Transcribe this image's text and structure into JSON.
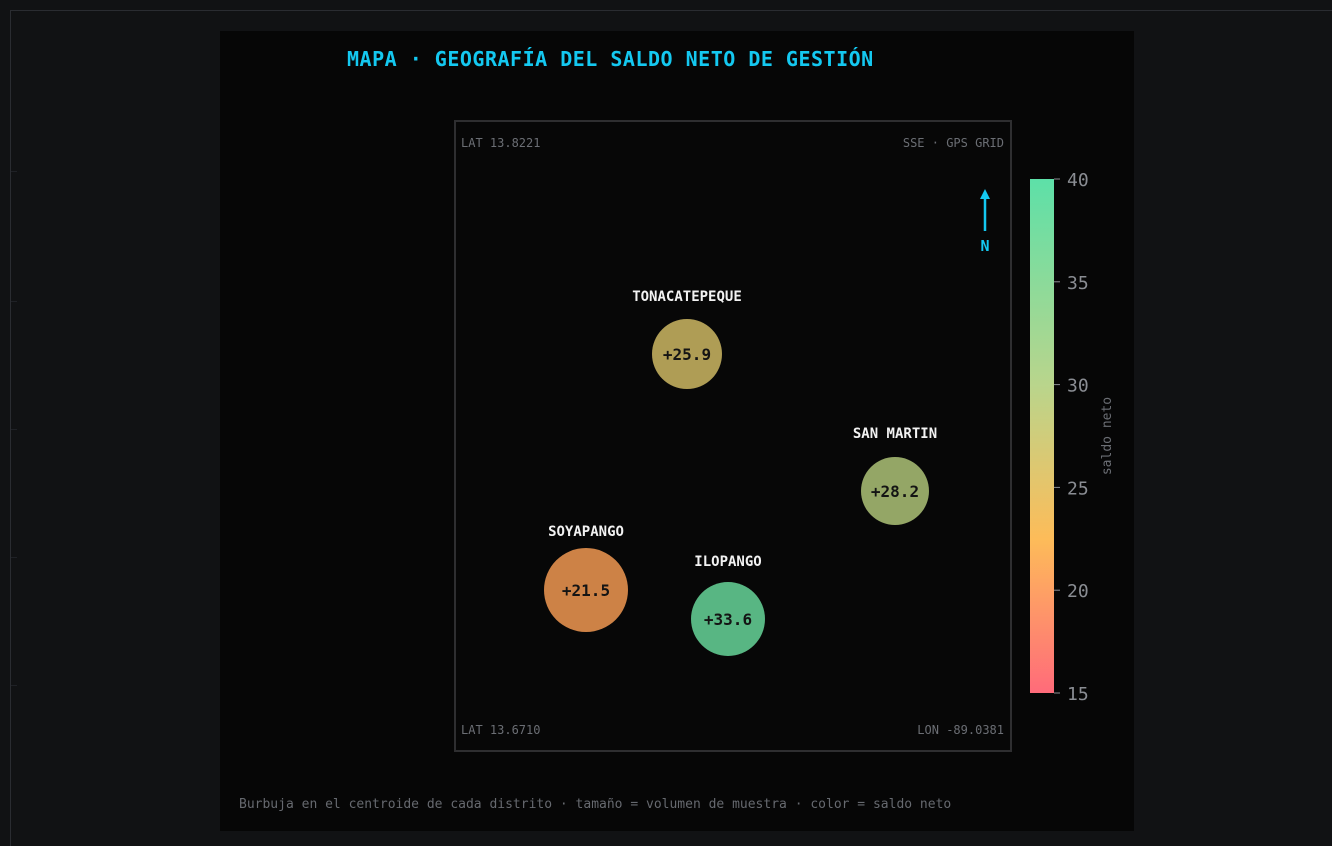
{
  "title": "MAPA · GEOGRAFÍA DEL SALDO NETO DE GESTIÓN",
  "map": {
    "corners": {
      "top_left": "LAT 13.8221",
      "top_right": "SSE · GPS GRID",
      "bottom_left": "LAT 13.6710",
      "bottom_right": "LON -89.0381"
    },
    "north_label": "N",
    "accent_color": "#14c8f0"
  },
  "chart_data": {
    "type": "scatter",
    "title": "MAPA · GEOGRAFÍA DEL SALDO NETO DE GESTIÓN",
    "value_format": "signed-one-decimal",
    "bubbles": [
      {
        "name": "TONACATEPEQUE",
        "value": 25.9,
        "value_label": "+25.9",
        "color": "#b8a55a"
      },
      {
        "name": "SAN MARTIN",
        "value": 28.2,
        "value_label": "+28.2",
        "color": "#9caf6c"
      },
      {
        "name": "SOYAPANGO",
        "value": 21.5,
        "value_label": "+21.5",
        "color": "#d8894a"
      },
      {
        "name": "ILOPANGO",
        "value": 33.6,
        "value_label": "+33.6",
        "color": "#5dc08a"
      }
    ],
    "colorbar": {
      "label": "saldo neto",
      "range": [
        15,
        40
      ],
      "ticks": [
        40,
        35,
        30,
        25,
        20,
        15
      ],
      "stops": [
        {
          "value": 15,
          "color": "#ff6b7a"
        },
        {
          "value": 22.5,
          "color": "#fdbc59"
        },
        {
          "value": 30,
          "color": "#b9d58c"
        },
        {
          "value": 40,
          "color": "#5de0a8"
        }
      ]
    }
  },
  "footer": "Burbuja en el centroide de cada distrito · tamaño = volumen de muestra · color = saldo neto"
}
